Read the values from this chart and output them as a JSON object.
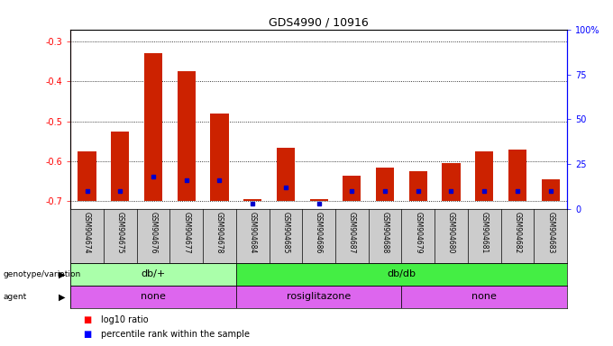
{
  "title": "GDS4990 / 10916",
  "samples": [
    "GSM904674",
    "GSM904675",
    "GSM904676",
    "GSM904677",
    "GSM904678",
    "GSM904684",
    "GSM904685",
    "GSM904686",
    "GSM904687",
    "GSM904688",
    "GSM904679",
    "GSM904680",
    "GSM904681",
    "GSM904682",
    "GSM904683"
  ],
  "log10_ratio": [
    -0.575,
    -0.525,
    -0.33,
    -0.375,
    -0.48,
    -0.695,
    -0.565,
    -0.695,
    -0.635,
    -0.615,
    -0.625,
    -0.605,
    -0.575,
    -0.57,
    -0.645
  ],
  "percentile_rank": [
    10,
    10,
    18,
    16,
    16,
    3,
    12,
    3,
    10,
    10,
    10,
    10,
    10,
    10,
    10
  ],
  "bar_color": "#cc2200",
  "dot_color": "#0000cc",
  "ylim_left": [
    -0.72,
    -0.27
  ],
  "ylim_right": [
    0,
    100
  ],
  "yticks_left": [
    -0.7,
    -0.6,
    -0.5,
    -0.4,
    -0.3
  ],
  "yticks_right": [
    0,
    25,
    50,
    75,
    100
  ],
  "ytick_labels_right": [
    "0",
    "25",
    "50",
    "75",
    "100%"
  ],
  "bar_width": 0.55,
  "genotype_groups": [
    {
      "label": "db/+",
      "start": 0,
      "end": 5,
      "color": "#aaffaa"
    },
    {
      "label": "db/db",
      "start": 5,
      "end": 15,
      "color": "#44ee44"
    }
  ],
  "agent_sections": [
    {
      "label": "none",
      "start": 0,
      "end": 5
    },
    {
      "label": "rosiglitazone",
      "start": 5,
      "end": 10
    },
    {
      "label": "none",
      "start": 10,
      "end": 15
    }
  ],
  "agent_color": "#dd66ee",
  "genotype_label": "genotype/variation",
  "agent_label": "agent",
  "legend_red": "log10 ratio",
  "legend_blue": "percentile rank within the sample",
  "bg_color": "#ffffff",
  "plot_bg_color": "#ffffff",
  "tick_bg_color": "#cccccc"
}
